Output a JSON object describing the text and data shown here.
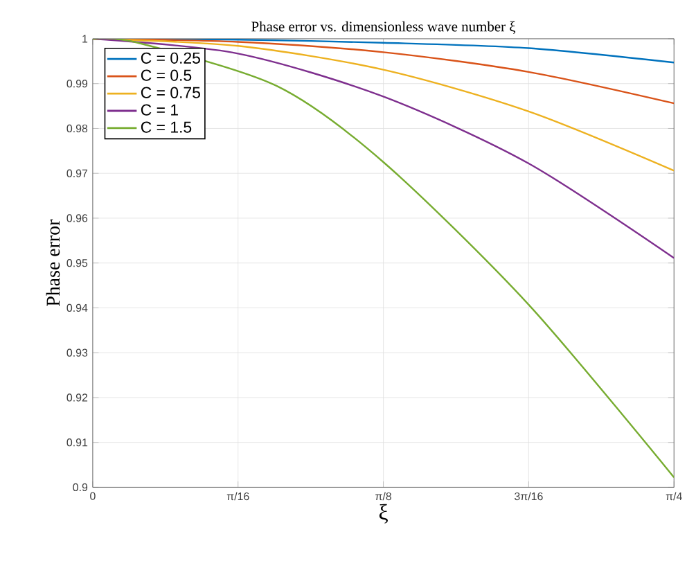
{
  "chart_data": {
    "type": "line",
    "title": "Phase error vs. dimensionless wave number ξ",
    "xlabel": "ξ",
    "ylabel": "Phase error",
    "x": [
      0,
      0.19635,
      0.3927,
      0.58905,
      0.7854
    ],
    "series": [
      {
        "name": "C = 0.25",
        "color": "#0072bd",
        "values": [
          1,
          0.9998,
          0.9991,
          0.9979,
          0.9947
        ]
      },
      {
        "name": "C = 0.5",
        "color": "#d95319",
        "values": [
          1,
          0.9993,
          0.997,
          0.9926,
          0.9856
        ]
      },
      {
        "name": "C = 0.75",
        "color": "#edb120",
        "values": [
          1,
          0.9984,
          0.9931,
          0.9838,
          0.9706
        ]
      },
      {
        "name": "C = 1",
        "color": "#7e2f8e",
        "values": [
          1,
          0.9967,
          0.9871,
          0.9722,
          0.9511
        ]
      },
      {
        "name": "C = 1.5",
        "color": "#77ac30",
        "x": [
          0,
          0.061,
          0.2483,
          0.3927,
          0.58905,
          0.7854
        ],
        "values": [
          1,
          0.9991,
          0.9895,
          0.9725,
          0.9407,
          0.9022
        ]
      }
    ],
    "xlim": [
      0,
      0.7854
    ],
    "ylim": [
      0.9,
      1
    ],
    "xticks": [
      0,
      {
        "value": 0.19635,
        "label": "π/16"
      },
      {
        "value": 0.3927,
        "label": "π/8"
      },
      {
        "value": 0.58905,
        "label": "3π/16"
      },
      {
        "value": 0.7854,
        "label": "π/4"
      }
    ],
    "yticks": [
      0.9,
      0.91,
      0.92,
      0.93,
      0.94,
      0.95,
      0.96,
      0.97,
      0.98,
      0.99,
      1
    ],
    "grid": true,
    "legend": "top left",
    "marker": "none",
    "line_style": "solid"
  }
}
